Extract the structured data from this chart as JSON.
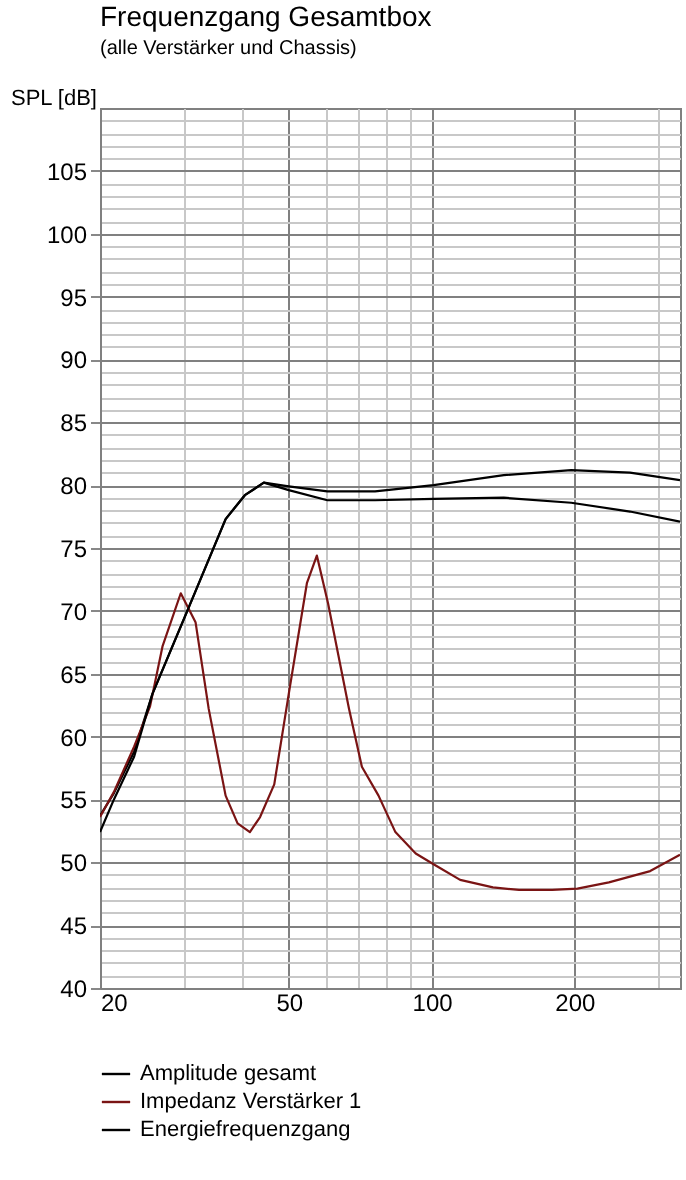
{
  "chart_data": {
    "type": "line",
    "title": "Frequenzgang Gesamtbox",
    "subtitle": "(alle Verstärker und Chassis)",
    "ylabel": "SPL [dB]",
    "x": [
      20,
      21.4,
      23.6,
      25.8,
      30.4,
      36.8,
      40.4,
      44.3,
      50,
      60.3,
      76,
      101,
      142,
      197,
      262,
      334
    ],
    "series": [
      {
        "name": "Amplitude gesamt",
        "color": "#000000",
        "values": [
          53.7,
          55.5,
          58.8,
          63.4,
          69.8,
          77.3,
          79.2,
          80.2,
          79.9,
          79.5,
          79.5,
          80.0,
          80.8,
          81.2,
          81.0,
          80.4
        ]
      },
      {
        "name": "Impedanz Verstärker 1",
        "color": "#7a1414",
        "x": [
          20,
          21.4,
          23.6,
          25.5,
          27.1,
          29.6,
          31.8,
          33.9,
          36.8,
          39.0,
          41.4,
          43.5,
          46.6,
          50,
          54.6,
          57.3,
          60.5,
          67.0,
          71.3,
          77.3,
          83.9,
          92.6,
          101.4,
          114.9,
          134.7,
          152.9,
          179.6,
          203,
          236.5,
          289,
          334
        ],
        "values": [
          53.6,
          55.6,
          59.2,
          62.4,
          67.2,
          71.4,
          69.1,
          62.2,
          55.3,
          53.1,
          52.4,
          53.6,
          56.2,
          63.4,
          72.2,
          74.4,
          70.6,
          62.2,
          57.6,
          55.3,
          52.4,
          50.7,
          49.8,
          48.6,
          48.0,
          47.8,
          47.8,
          47.9,
          48.4,
          49.3,
          50.6
        ]
      },
      {
        "name": "Energiefrequenzgang",
        "color": "#000000",
        "values": [
          52.4,
          55.0,
          58.4,
          63.4,
          69.8,
          77.3,
          79.2,
          80.2,
          79.6,
          78.8,
          78.8,
          78.9,
          79.0,
          78.6,
          77.9,
          77.1
        ]
      }
    ],
    "log": "x",
    "xlim": [
      20,
      334
    ],
    "ylim": [
      40,
      110
    ],
    "xticks": [
      20,
      {
        "value": 30,
        "label": null
      },
      {
        "value": 40,
        "label": null
      },
      50,
      {
        "value": 60,
        "label": null
      },
      {
        "value": 70,
        "label": null
      },
      {
        "value": 80,
        "label": null
      },
      {
        "value": 90,
        "label": null
      },
      100,
      200,
      {
        "value": 300,
        "label": null
      }
    ],
    "yticks": [
      40,
      {
        "value": 41,
        "label": null
      },
      {
        "value": 42,
        "label": null
      },
      {
        "value": 43,
        "label": null
      },
      {
        "value": 44,
        "label": null
      },
      45,
      {
        "value": 46,
        "label": null
      },
      {
        "value": 47,
        "label": null
      },
      {
        "value": 48,
        "label": null
      },
      {
        "value": 49,
        "label": null
      },
      50,
      {
        "value": 51,
        "label": null
      },
      {
        "value": 52,
        "label": null
      },
      {
        "value": 53,
        "label": null
      },
      {
        "value": 54,
        "label": null
      },
      55,
      {
        "value": 56,
        "label": null
      },
      {
        "value": 57,
        "label": null
      },
      {
        "value": 58,
        "label": null
      },
      {
        "value": 59,
        "label": null
      },
      60,
      {
        "value": 61,
        "label": null
      },
      {
        "value": 62,
        "label": null
      },
      {
        "value": 63,
        "label": null
      },
      {
        "value": 64,
        "label": null
      },
      65,
      {
        "value": 66,
        "label": null
      },
      {
        "value": 67,
        "label": null
      },
      {
        "value": 68,
        "label": null
      },
      {
        "value": 69,
        "label": null
      },
      70,
      {
        "value": 71,
        "label": null
      },
      {
        "value": 72,
        "label": null
      },
      {
        "value": 73,
        "label": null
      },
      {
        "value": 74,
        "label": null
      },
      75,
      {
        "value": 76,
        "label": null
      },
      {
        "value": 77,
        "label": null
      },
      {
        "value": 78,
        "label": null
      },
      {
        "value": 79,
        "label": null
      },
      80,
      {
        "value": 81,
        "label": null
      },
      {
        "value": 82,
        "label": null
      },
      {
        "value": 83,
        "label": null
      },
      {
        "value": 84,
        "label": null
      },
      85,
      {
        "value": 86,
        "label": null
      },
      {
        "value": 87,
        "label": null
      },
      {
        "value": 88,
        "label": null
      },
      {
        "value": 89,
        "label": null
      },
      90,
      {
        "value": 91,
        "label": null
      },
      {
        "value": 92,
        "label": null
      },
      {
        "value": 93,
        "label": null
      },
      {
        "value": 94,
        "label": null
      },
      95,
      {
        "value": 96,
        "label": null
      },
      {
        "value": 97,
        "label": null
      },
      {
        "value": 98,
        "label": null
      },
      {
        "value": 99,
        "label": null
      },
      100,
      {
        "value": 101,
        "label": null
      },
      {
        "value": 102,
        "label": null
      },
      {
        "value": 103,
        "label": null
      },
      {
        "value": 104,
        "label": null
      },
      105,
      {
        "value": 106,
        "label": null
      },
      {
        "value": 107,
        "label": null
      },
      {
        "value": 108,
        "label": null
      },
      {
        "value": 109,
        "label": null
      }
    ],
    "grid": true,
    "legend": "bottom left",
    "marker": "none",
    "line_style": "solid"
  }
}
